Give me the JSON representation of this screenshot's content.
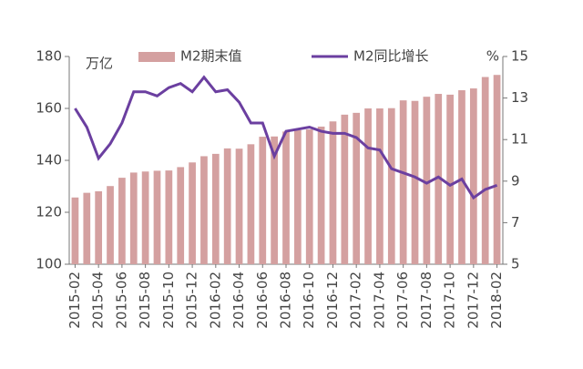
{
  "chart_data": {
    "type": "bar-line",
    "y_label": "万亿",
    "y2_label": "%",
    "categories": [
      "2015-02",
      null,
      "2015-04",
      null,
      "2015-06",
      null,
      "2015-08",
      null,
      "2015-10",
      null,
      "2015-12",
      null,
      "2016-02",
      null,
      "2016-04",
      null,
      "2016-06",
      null,
      "2016-08",
      null,
      "2016-10",
      null,
      "2016-12",
      null,
      "2017-02",
      null,
      "2017-04",
      null,
      "2017-06",
      null,
      "2017-08",
      null,
      "2017-10",
      null,
      "2017-12",
      null,
      "2018-02"
    ],
    "series": [
      {
        "name": "M2期末值",
        "type": "bar",
        "color": "#d4a0a0",
        "values": [
          125.7,
          127.5,
          128.1,
          130.1,
          133.3,
          135.3,
          135.7,
          136.0,
          136.1,
          137.4,
          139.2,
          141.6,
          142.5,
          144.6,
          144.5,
          146.2,
          149.1,
          149.2,
          151.1,
          151.6,
          151.9,
          153.0,
          155.0,
          157.6,
          158.3,
          160.0,
          160.0,
          160.1,
          163.1,
          162.9,
          164.5,
          165.6,
          165.3,
          167.0,
          167.7,
          172.1,
          172.9
        ]
      },
      {
        "name": "M2同比增长",
        "type": "line",
        "axis": "y2",
        "color": "#6b3fa0",
        "values": [
          12.5,
          11.6,
          10.1,
          10.8,
          11.8,
          13.3,
          13.3,
          13.1,
          13.5,
          13.7,
          13.3,
          14.0,
          13.3,
          13.4,
          12.8,
          11.8,
          11.8,
          10.2,
          11.4,
          11.5,
          11.6,
          11.4,
          11.3,
          11.3,
          11.1,
          10.6,
          10.5,
          9.6,
          9.4,
          9.2,
          8.9,
          9.2,
          8.8,
          9.1,
          8.2,
          8.6,
          8.8
        ]
      }
    ],
    "ylim": [
      100,
      180
    ],
    "yticks": [
      100,
      120,
      140,
      160,
      180
    ],
    "y2lim": [
      5,
      15
    ],
    "y2ticks": [
      5,
      7,
      9,
      11,
      13,
      15
    ]
  }
}
